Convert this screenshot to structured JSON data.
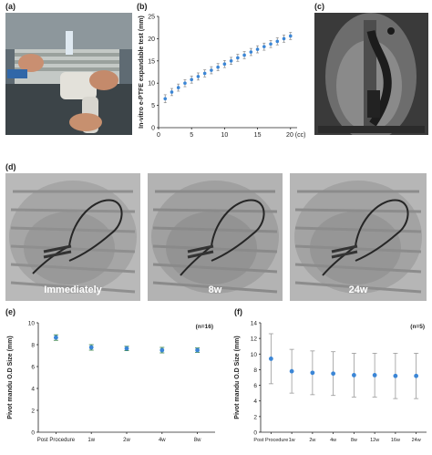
{
  "panels": {
    "a": "(a)",
    "b": "(b)",
    "c": "(c)",
    "d": "(d)",
    "e": "(e)",
    "f": "(f)"
  },
  "fluoro_captions": [
    "Immediately",
    "8w",
    "24w"
  ],
  "colors": {
    "marker": "#3b86d6",
    "errorbar_e": "#2f7d3c",
    "errorbar_f": "#999999",
    "axis": "#222222"
  },
  "chart_data": [
    {
      "id": "b",
      "type": "scatter",
      "title": "",
      "xlabel": "",
      "x_unit_label": "(cc)",
      "ylabel": "In-vitro e-PTFE expandable test (mm)",
      "xlim": [
        0,
        21
      ],
      "ylim": [
        0,
        25
      ],
      "xticks": [
        0,
        5,
        10,
        15,
        20
      ],
      "yticks": [
        0,
        5,
        10,
        15,
        20,
        25
      ],
      "error_bars": true,
      "series": [
        {
          "x": [
            1,
            2,
            3,
            4,
            5,
            6,
            7,
            8,
            9,
            10,
            11,
            12,
            13,
            14,
            15,
            16,
            17,
            18,
            19,
            20
          ],
          "y": [
            6.5,
            8.0,
            9.0,
            10.0,
            10.8,
            11.5,
            12.2,
            12.9,
            13.6,
            14.3,
            15.0,
            15.7,
            16.3,
            17.0,
            17.6,
            18.2,
            18.8,
            19.4,
            20.0,
            20.6
          ],
          "err": [
            0.9,
            0.8,
            0.8,
            0.8,
            0.8,
            0.8,
            0.8,
            0.8,
            0.8,
            0.8,
            0.8,
            0.8,
            0.8,
            0.8,
            0.8,
            0.8,
            0.8,
            0.8,
            0.8,
            0.8
          ]
        }
      ]
    },
    {
      "id": "e",
      "type": "scatter",
      "title": "",
      "annotation": "(n=16)",
      "xlabel": "",
      "ylabel": "Pivot mandu O.D Size (mm)",
      "categories": [
        "Post Procedure",
        "1w",
        "2w",
        "4w",
        "8w"
      ],
      "ylim": [
        0,
        10
      ],
      "yticks": [
        0,
        2,
        4,
        6,
        8,
        10
      ],
      "error_bars": true,
      "series": [
        {
          "values": [
            8.65,
            7.75,
            7.65,
            7.5,
            7.5
          ],
          "err": [
            0.25,
            0.25,
            0.2,
            0.25,
            0.2
          ]
        }
      ]
    },
    {
      "id": "f",
      "type": "scatter",
      "title": "",
      "annotation": "(n=5)",
      "xlabel": "",
      "ylabel": "Pivot mandu O.D Size (mm)",
      "categories": [
        "Post Procedure",
        "1w",
        "2w",
        "4w",
        "8w",
        "12w",
        "16w",
        "24w"
      ],
      "ylim": [
        0,
        14
      ],
      "yticks": [
        0,
        2,
        4,
        6,
        8,
        10,
        12,
        14
      ],
      "error_bars": true,
      "series": [
        {
          "values": [
            9.4,
            7.8,
            7.6,
            7.5,
            7.3,
            7.3,
            7.2,
            7.2
          ],
          "err": [
            3.2,
            2.8,
            2.8,
            2.8,
            2.8,
            2.8,
            2.9,
            2.9
          ]
        }
      ]
    }
  ]
}
